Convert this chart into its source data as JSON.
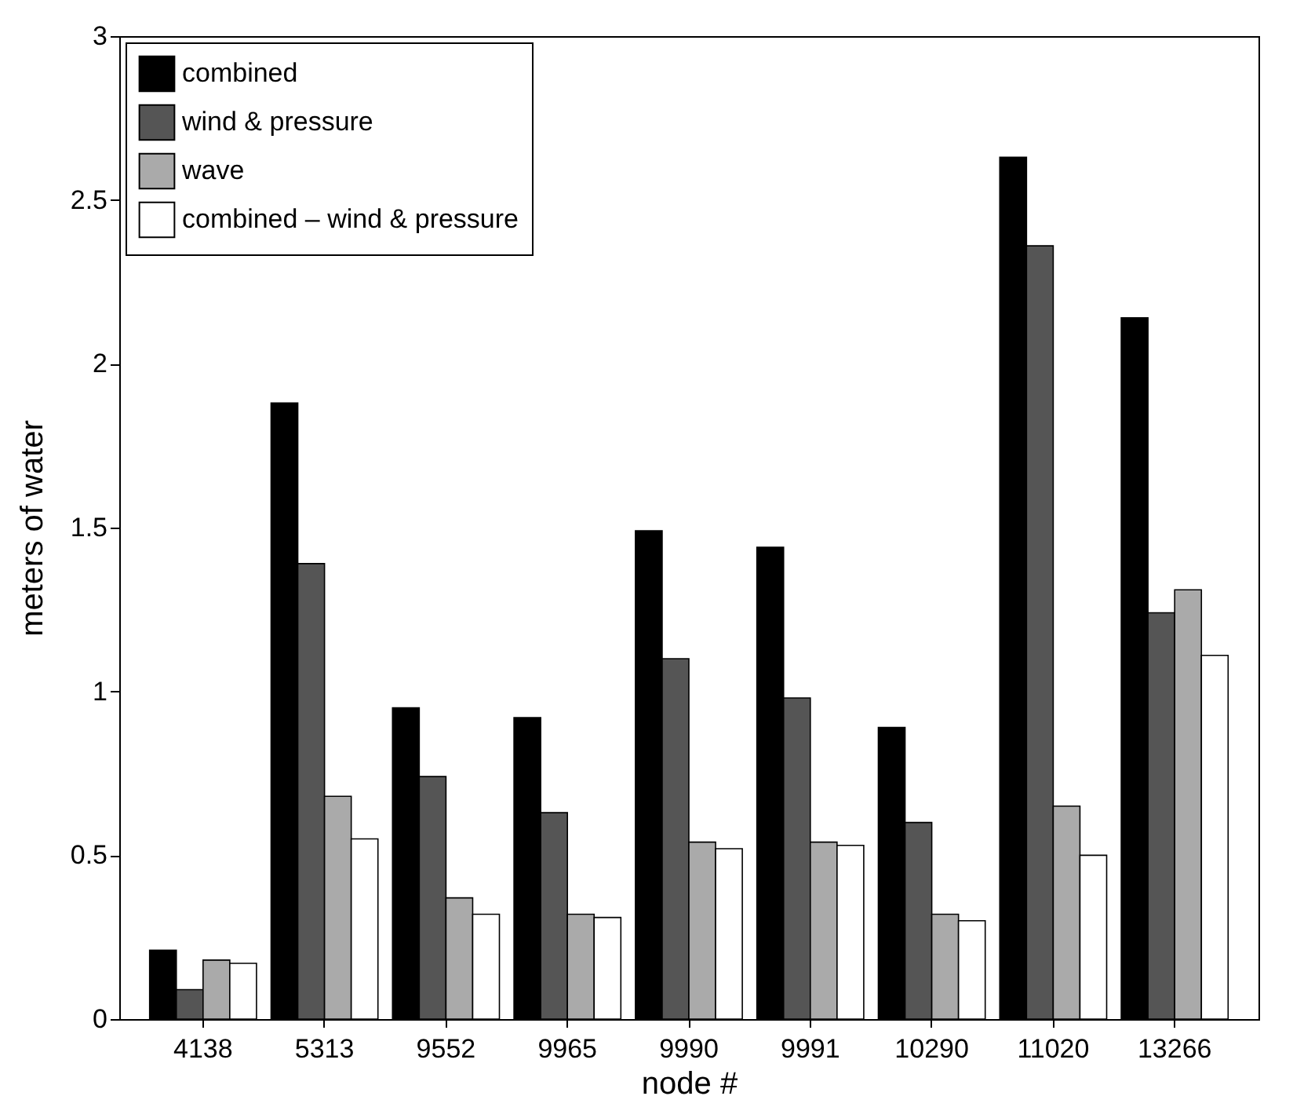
{
  "chart_data": {
    "type": "bar",
    "xlabel": "node #",
    "ylabel": "meters of water",
    "categories": [
      "4138",
      "5313",
      "9552",
      "9965",
      "9990",
      "9991",
      "10290",
      "11020",
      "13266"
    ],
    "series": [
      {
        "name": "combined",
        "color": "#000000",
        "values": [
          0.21,
          1.88,
          0.95,
          0.92,
          1.49,
          1.44,
          0.89,
          2.63,
          2.14
        ]
      },
      {
        "name": "wind & pressure",
        "color": "#555555",
        "values": [
          0.09,
          1.39,
          0.74,
          0.63,
          1.1,
          0.98,
          0.6,
          2.36,
          1.24
        ]
      },
      {
        "name": "wave",
        "color": "#aaaaaa",
        "values": [
          0.18,
          0.68,
          0.37,
          0.32,
          0.54,
          0.54,
          0.32,
          0.65,
          1.31
        ]
      },
      {
        "name": "combined – wind & pressure",
        "color": "#ffffff",
        "values": [
          0.17,
          0.55,
          0.32,
          0.31,
          0.52,
          0.53,
          0.3,
          0.5,
          1.11
        ]
      }
    ],
    "ylim": [
      0,
      3
    ],
    "yticks": [
      0,
      0.5,
      1,
      1.5,
      2,
      2.5,
      3
    ],
    "grid": false,
    "legend": "top left"
  }
}
